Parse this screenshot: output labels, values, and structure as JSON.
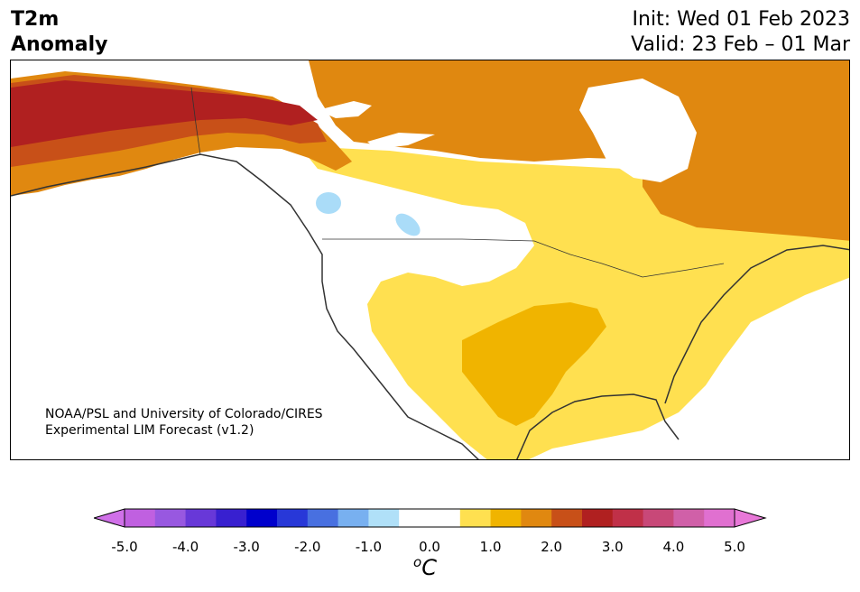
{
  "title": {
    "line1": "T2m",
    "line2": "Anomaly"
  },
  "dates": {
    "init": "Init: Wed 01 Feb 2023",
    "valid": "Valid: 23 Feb – 01 Mar"
  },
  "credit": {
    "line1": "NOAA/PSL and University of Colorado/CIRES",
    "line2": "Experimental LIM Forecast (v1.2)"
  },
  "colorbar": {
    "ticks": [
      "-5.0",
      "-4.0",
      "-3.0",
      "-2.0",
      "-1.0",
      "0.0",
      "1.0",
      "2.0",
      "3.0",
      "4.0",
      "5.0"
    ],
    "unit_symbol": "o",
    "unit_letter": "C",
    "low_extend_color": "#d070e8",
    "high_extend_color": "#e878d8",
    "colors": [
      "#c060e0",
      "#9858e0",
      "#6838d8",
      "#3820d0",
      "#0000cc",
      "#2838d8",
      "#4870e0",
      "#78b0f0",
      "#b0e0f8",
      "#ffffff",
      "#ffffff",
      "#ffe050",
      "#f0b400",
      "#e08810",
      "#c85018",
      "#b02020",
      "#c03048",
      "#c84878",
      "#d060a8",
      "#e070d0"
    ]
  },
  "map": {
    "colors": {
      "land": "#ffffff",
      "anom_1": "#ffe050",
      "anom_2": "#f0b400",
      "anom_3": "#e08810",
      "anom_4": "#c85018",
      "anom_5": "#b02020",
      "anom_6": "#c03048",
      "cool": "#aadcf8",
      "coast": "#333333"
    }
  }
}
